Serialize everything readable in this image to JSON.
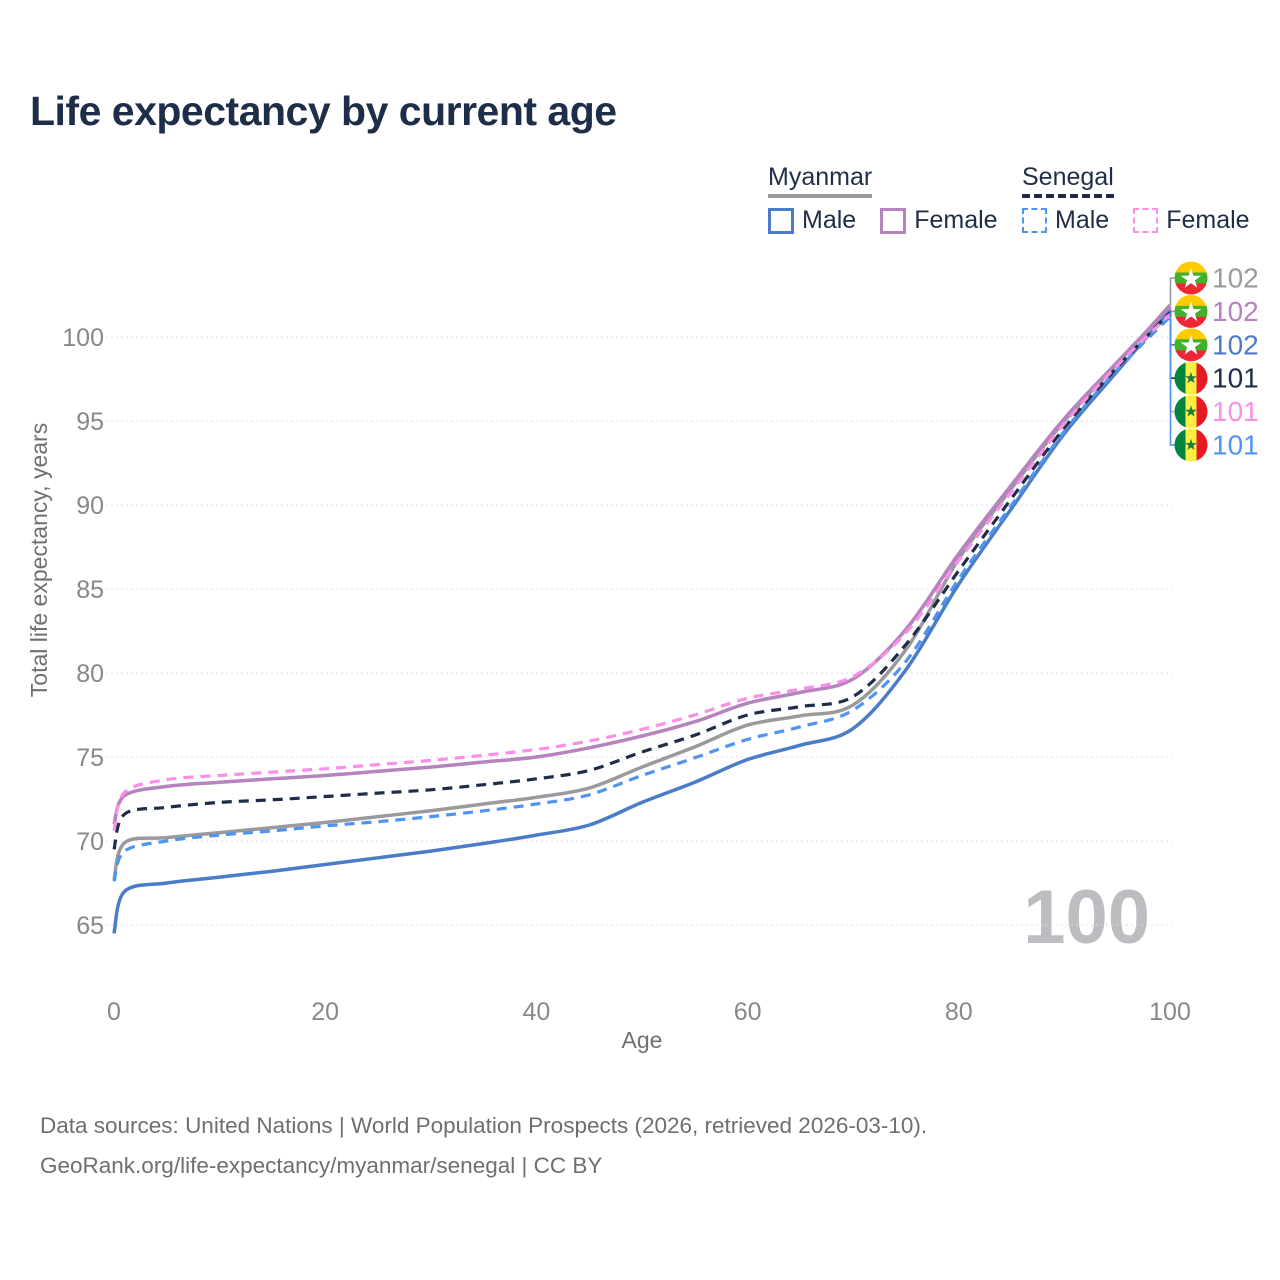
{
  "title": "Life expectancy by current age",
  "watermark": "100",
  "legend": {
    "groups": [
      {
        "country": "Myanmar",
        "line_style": "solid",
        "underline_color": "#9a9a9e",
        "items": [
          {
            "label": "Male",
            "color": "#4a7cc7"
          },
          {
            "label": "Female",
            "color": "#b583bd"
          }
        ]
      },
      {
        "country": "Senegal",
        "line_style": "dashed",
        "underline_color": "#1f2d48",
        "items": [
          {
            "label": "Male",
            "color": "#4f94ef"
          },
          {
            "label": "Female",
            "color": "#fb8fe5"
          }
        ]
      }
    ]
  },
  "footer": {
    "line1": "Data sources: United Nations | World Population Prospects (2026, retrieved 2026-03-10).",
    "line2": "GeoRank.org/life-expectancy/myanmar/senegal | CC BY"
  },
  "chart_data": {
    "type": "line",
    "title": "Life expectancy by current age",
    "xlabel": "Age",
    "ylabel": "Total life expectancy, years",
    "xlim": [
      0,
      100
    ],
    "ylim": [
      63.5,
      103
    ],
    "xticks": [
      0,
      20,
      40,
      60,
      80,
      100
    ],
    "yticks": [
      65,
      70,
      75,
      80,
      85,
      90,
      95,
      100
    ],
    "grid": true,
    "legend_position": "top-right",
    "ages": [
      0,
      1,
      5,
      10,
      15,
      20,
      25,
      30,
      35,
      40,
      45,
      50,
      55,
      60,
      65,
      70,
      75,
      80,
      85,
      90,
      95,
      100
    ],
    "series": [
      {
        "id": "myanmar-total",
        "name": "Myanmar Total",
        "color": "#9a9a9e",
        "dash": false,
        "flag": "myanmar",
        "end_label": "102",
        "values": [
          67.7,
          69.9,
          70.2,
          70.5,
          70.8,
          71.1,
          71.45,
          71.8,
          72.2,
          72.6,
          73.15,
          74.4,
          75.6,
          76.9,
          77.45,
          78.1,
          81.4,
          86.8,
          91.0,
          95.0,
          98.4,
          101.9
        ]
      },
      {
        "id": "myanmar-female",
        "name": "Myanmar Female",
        "color": "#b583bd",
        "dash": false,
        "flag": "myanmar",
        "end_label": "102",
        "values": [
          71.0,
          72.7,
          73.25,
          73.5,
          73.7,
          73.9,
          74.15,
          74.4,
          74.7,
          75.0,
          75.55,
          76.25,
          77.1,
          78.2,
          78.85,
          79.65,
          82.6,
          87.1,
          91.2,
          95.15,
          98.5,
          101.8
        ]
      },
      {
        "id": "myanmar-male",
        "name": "Myanmar Male",
        "color": "#4a7cc7",
        "dash": false,
        "flag": "myanmar",
        "end_label": "102",
        "values": [
          64.5,
          67.0,
          67.5,
          67.85,
          68.2,
          68.6,
          69.0,
          69.4,
          69.85,
          70.35,
          70.95,
          72.3,
          73.5,
          74.85,
          75.7,
          76.7,
          80.2,
          85.3,
          89.8,
          94.25,
          97.95,
          101.6
        ]
      },
      {
        "id": "senegal-total",
        "name": "Senegal Total",
        "color": "#1f2d48",
        "dash": true,
        "flag": "senegal",
        "end_label": "101",
        "values": [
          69.5,
          71.6,
          72.0,
          72.3,
          72.45,
          72.65,
          72.85,
          73.05,
          73.35,
          73.7,
          74.2,
          75.3,
          76.3,
          77.5,
          78.0,
          78.6,
          81.7,
          86.1,
          90.4,
          94.6,
          98.2,
          101.45
        ]
      },
      {
        "id": "senegal-female",
        "name": "Senegal Female",
        "color": "#fb8fe5",
        "dash": true,
        "flag": "senegal",
        "end_label": "101",
        "values": [
          70.6,
          72.9,
          73.65,
          73.9,
          74.1,
          74.3,
          74.55,
          74.8,
          75.1,
          75.45,
          75.95,
          76.65,
          77.5,
          78.5,
          79.05,
          79.8,
          82.4,
          86.7,
          90.8,
          94.85,
          98.3,
          101.35
        ]
      },
      {
        "id": "senegal-male",
        "name": "Senegal Male",
        "color": "#4f94ef",
        "dash": true,
        "flag": "senegal",
        "end_label": "101",
        "values": [
          67.6,
          69.4,
          70.0,
          70.35,
          70.6,
          70.9,
          71.15,
          71.45,
          71.8,
          72.2,
          72.75,
          73.9,
          74.95,
          76.05,
          76.8,
          77.8,
          80.7,
          85.6,
          90.0,
          94.4,
          98.05,
          101.2
        ]
      }
    ]
  }
}
